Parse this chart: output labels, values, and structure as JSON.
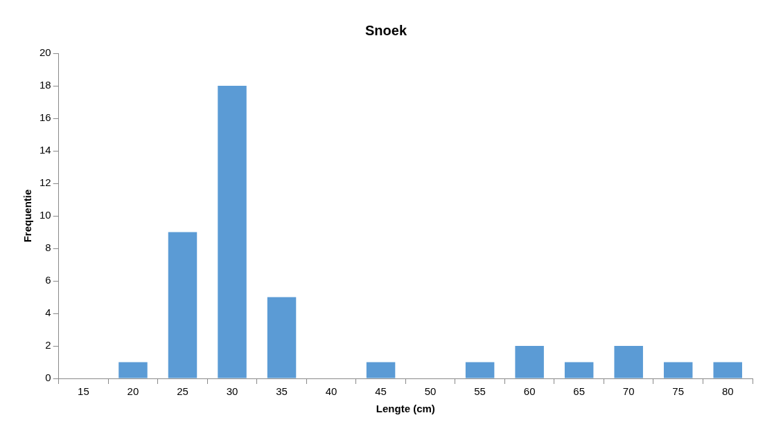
{
  "chart_data": {
    "type": "bar",
    "title": "Snoek",
    "xlabel": "Lengte (cm)",
    "ylabel": "Frequentie",
    "categories": [
      "15",
      "20",
      "25",
      "30",
      "35",
      "40",
      "45",
      "50",
      "55",
      "60",
      "65",
      "70",
      "75",
      "80"
    ],
    "values": [
      0,
      1,
      9,
      18,
      5,
      0,
      1,
      0,
      1,
      2,
      1,
      2,
      1,
      1
    ],
    "color": "#5b9bd5",
    "ylim": [
      0,
      20
    ],
    "yticks": [
      0,
      2,
      4,
      6,
      8,
      10,
      12,
      14,
      16,
      18,
      20
    ],
    "grid": false,
    "legend": false
  }
}
